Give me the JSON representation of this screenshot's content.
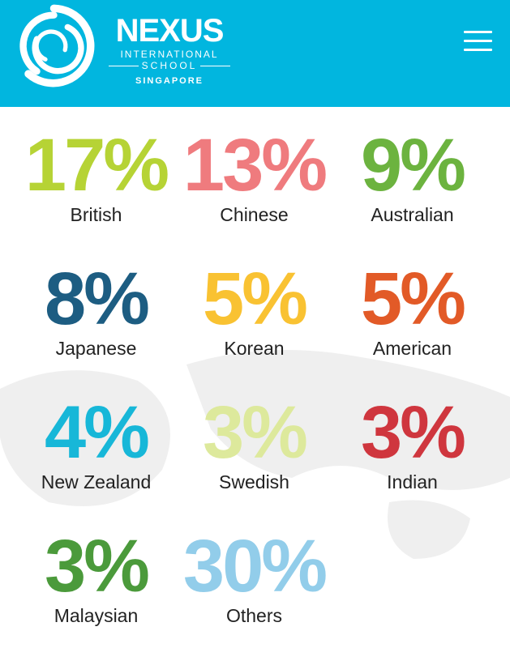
{
  "header": {
    "logo": {
      "name": "NEXUS",
      "line1": "INTERNATIONAL",
      "line2": "SCHOOL",
      "line3": "SINGAPORE"
    },
    "menu_icon": "hamburger-menu-icon",
    "background": "#01b6df"
  },
  "stats": [
    {
      "percent": "17%",
      "label": "British",
      "color": "#b6d335"
    },
    {
      "percent": "13%",
      "label": "Chinese",
      "color": "#ef7b7e"
    },
    {
      "percent": "9%",
      "label": "Australian",
      "color": "#6cb33f"
    },
    {
      "percent": "8%",
      "label": "Japanese",
      "color": "#1d5d82"
    },
    {
      "percent": "5%",
      "label": "Korean",
      "color": "#f9c232"
    },
    {
      "percent": "5%",
      "label": "American",
      "color": "#e25a27"
    },
    {
      "percent": "4%",
      "label": "New Zealand",
      "color": "#17b7d8"
    },
    {
      "percent": "3%",
      "label": "Swedish",
      "color": "#dde99c"
    },
    {
      "percent": "3%",
      "label": "Indian",
      "color": "#cf363e"
    },
    {
      "percent": "3%",
      "label": "Malaysian",
      "color": "#4b9a3b"
    },
    {
      "percent": "30%",
      "label": "Others",
      "color": "#92cdea"
    }
  ]
}
